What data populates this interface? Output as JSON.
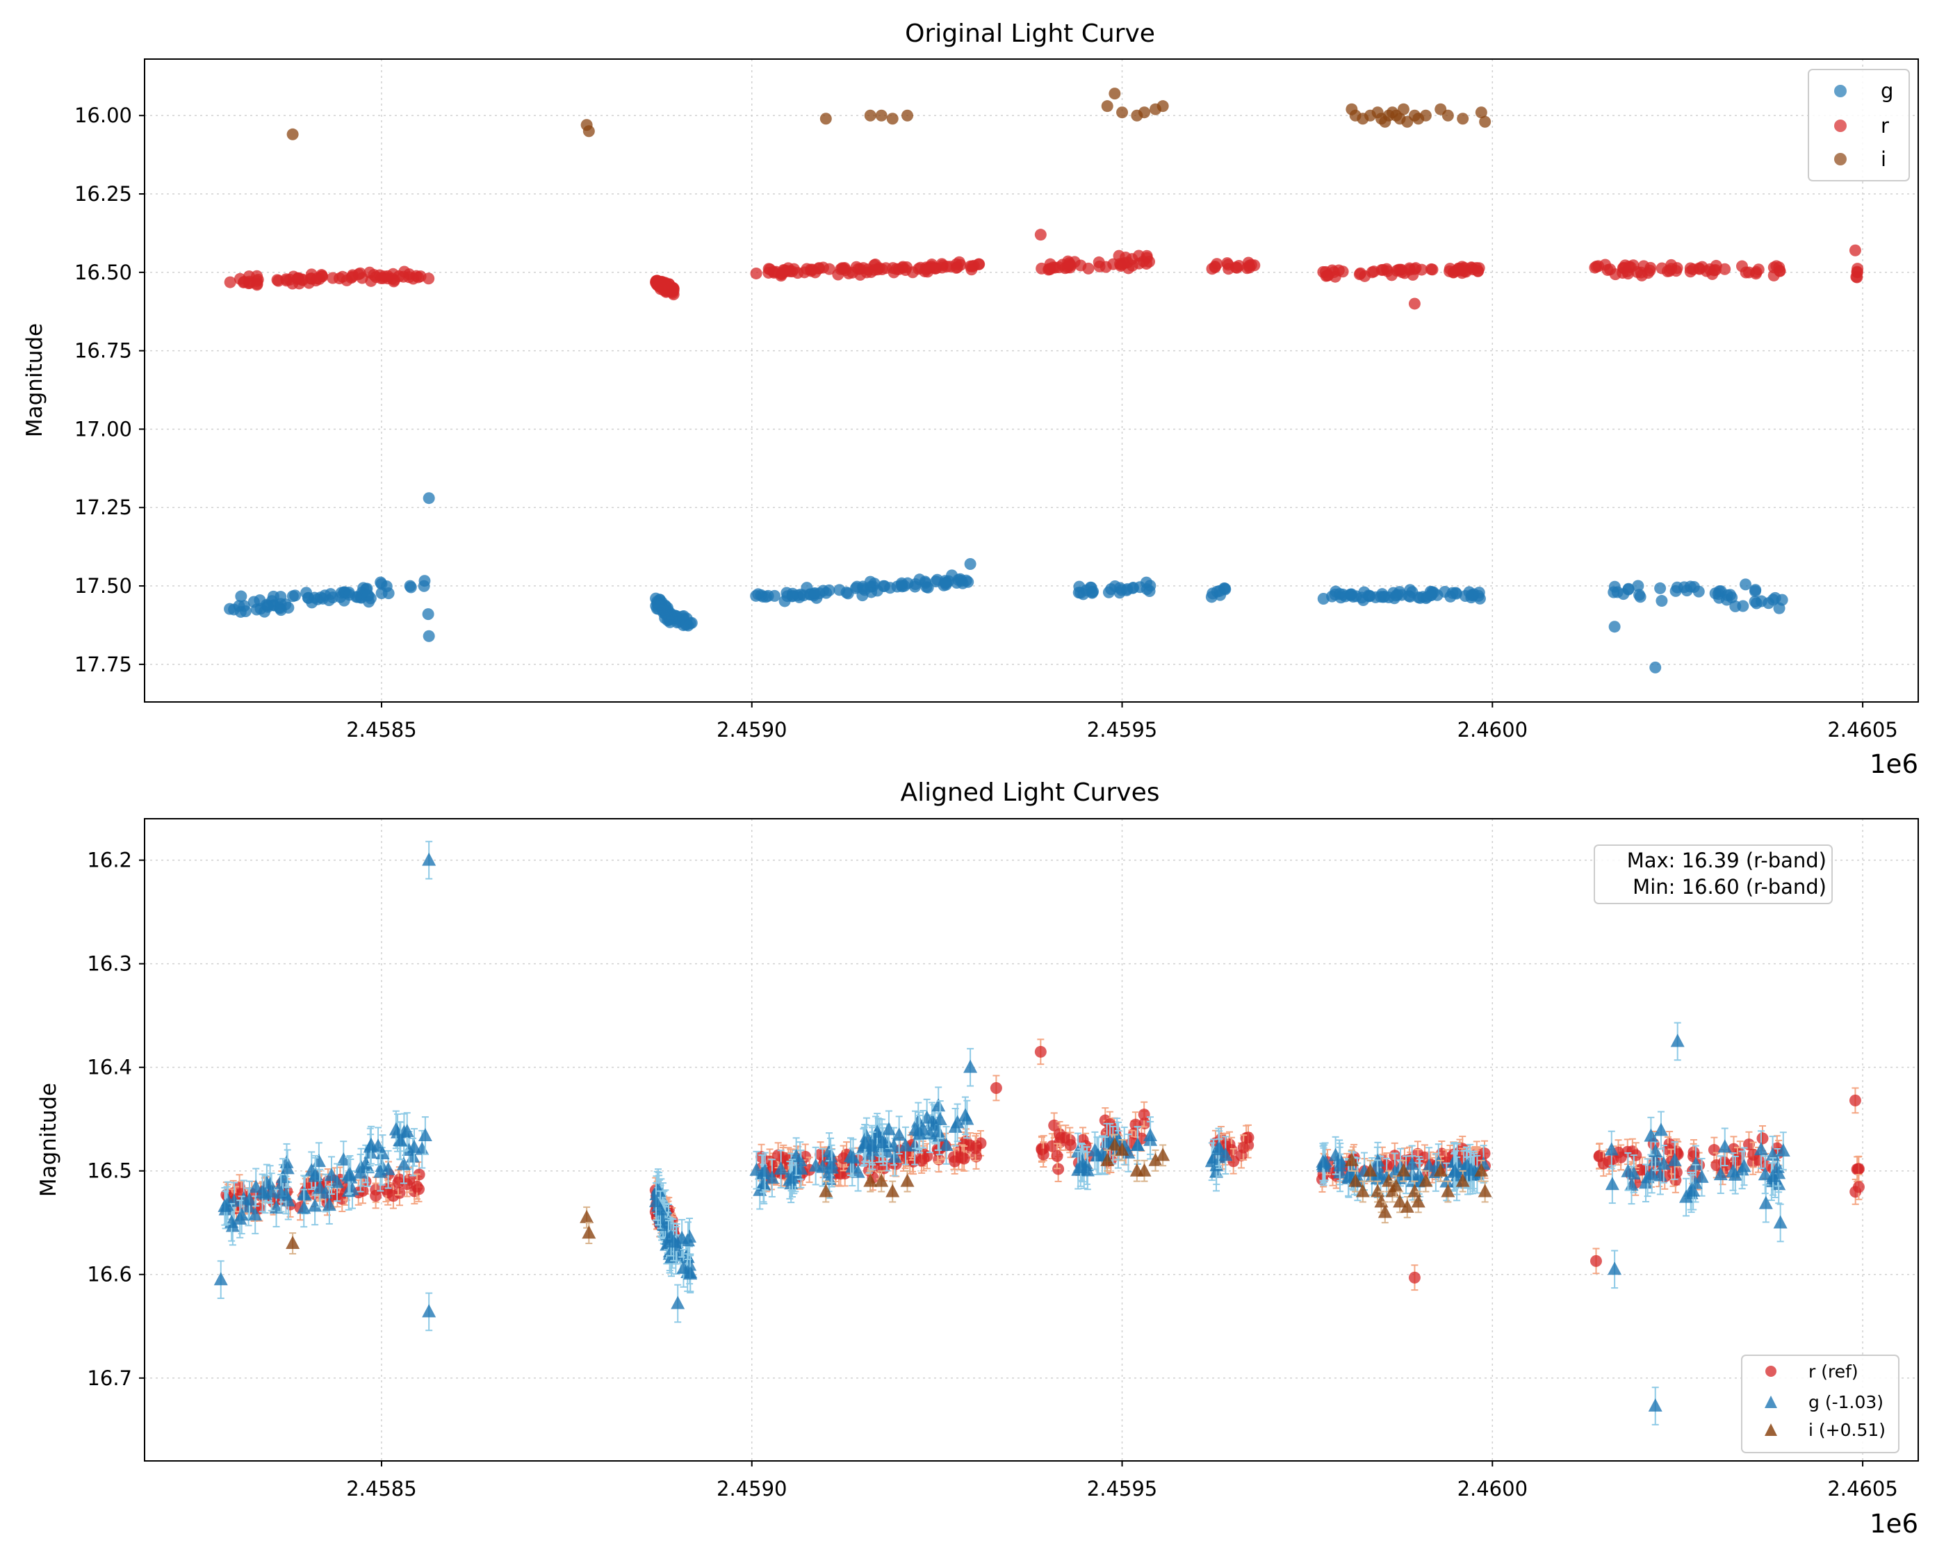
{
  "chart_data": [
    {
      "type": "scatter",
      "title": "Original Light Curve",
      "xlabel": "",
      "ylabel": "Magnitude",
      "x_offset_label": "1e6",
      "xlim": [
        2458180,
        2460575
      ],
      "ylim": [
        17.87,
        15.82
      ],
      "y_inverted": true,
      "grid": true,
      "x_ticks": [
        2458500,
        2459000,
        2459500,
        2460000,
        2460500
      ],
      "x_tick_labels": [
        "2.4585",
        "2.4590",
        "2.4595",
        "2.4600",
        "2.4605"
      ],
      "y_ticks": [
        16.0,
        16.25,
        16.5,
        16.75,
        17.0,
        17.25,
        17.5,
        17.75
      ],
      "y_tick_labels": [
        "16.00",
        "16.25",
        "16.50",
        "16.75",
        "17.00",
        "17.25",
        "17.50",
        "17.75"
      ],
      "legend": {
        "placement": "top-right",
        "entries": [
          {
            "label": "g",
            "color": "#1f77b4",
            "marker": "circle"
          },
          {
            "label": "r",
            "color": "#d62728",
            "marker": "circle"
          },
          {
            "label": "i",
            "color": "#8b4513",
            "marker": "circle"
          }
        ]
      },
      "series": [
        {
          "name": "g",
          "color": "#1f77b4",
          "marker": "circle",
          "segments": [
            {
              "x": [
                2458283,
                2458565
              ],
              "y": [
                17.57,
                17.5
              ],
              "spread": 0.04,
              "n": 70
            },
            {
              "x": [
                2458870,
                2458890
              ],
              "y": [
                17.55,
                17.6
              ],
              "spread": 0.03,
              "n": 40
            },
            {
              "x": [
                2458890,
                2458920
              ],
              "y": [
                17.6,
                17.62
              ],
              "spread": 0.03,
              "n": 20
            },
            {
              "x": [
                2459005,
                2459295
              ],
              "y": [
                17.54,
                17.48
              ],
              "spread": 0.025,
              "n": 75
            },
            {
              "x": [
                2459440,
                2459540
              ],
              "y": [
                17.52,
                17.5
              ],
              "spread": 0.025,
              "n": 25
            },
            {
              "x": [
                2459620,
                2459640
              ],
              "y": [
                17.53,
                17.51
              ],
              "spread": 0.02,
              "n": 8
            },
            {
              "x": [
                2459770,
                2459990
              ],
              "y": [
                17.53,
                17.53
              ],
              "spread": 0.02,
              "n": 60
            },
            {
              "x": [
                2460155,
                2460395
              ],
              "y": [
                17.52,
                17.54
              ],
              "spread": 0.05,
              "n": 40
            }
          ],
          "outliers": [
            [
              2458564,
              17.22
            ],
            [
              2458564,
              17.66
            ],
            [
              2458563,
              17.59
            ],
            [
              2459295,
              17.43
            ],
            [
              2460220,
              17.76
            ],
            [
              2460165,
              17.63
            ]
          ]
        },
        {
          "name": "r",
          "color": "#d62728",
          "marker": "circle",
          "segments": [
            {
              "x": [
                2458283,
                2458565
              ],
              "y": [
                16.53,
                16.51
              ],
              "spread": 0.02,
              "n": 70
            },
            {
              "x": [
                2458870,
                2458895
              ],
              "y": [
                16.53,
                16.56
              ],
              "spread": 0.02,
              "n": 75
            },
            {
              "x": [
                2459005,
                2459310
              ],
              "y": [
                16.5,
                16.48
              ],
              "spread": 0.02,
              "n": 90
            },
            {
              "x": [
                2459390,
                2459540
              ],
              "y": [
                16.48,
                16.46
              ],
              "spread": 0.03,
              "n": 40
            },
            {
              "x": [
                2459620,
                2459680
              ],
              "y": [
                16.48,
                16.48
              ],
              "spread": 0.02,
              "n": 16
            },
            {
              "x": [
                2459770,
                2459990
              ],
              "y": [
                16.5,
                16.49
              ],
              "spread": 0.02,
              "n": 55
            },
            {
              "x": [
                2460135,
                2460395
              ],
              "y": [
                16.49,
                16.49
              ],
              "spread": 0.03,
              "n": 55
            },
            {
              "x": [
                2460490,
                2460495
              ],
              "y": [
                16.5,
                16.5
              ],
              "spread": 0.03,
              "n": 5
            }
          ],
          "outliers": [
            [
              2459390,
              16.38
            ],
            [
              2459895,
              16.6
            ],
            [
              2460490,
              16.43
            ]
          ]
        },
        {
          "name": "i",
          "color": "#8b4513",
          "marker": "circle",
          "points": [
            [
              2458380,
              16.06
            ],
            [
              2458777,
              16.03
            ],
            [
              2458780,
              16.05
            ],
            [
              2459100,
              16.01
            ],
            [
              2459175,
              16.0
            ],
            [
              2459190,
              16.01
            ],
            [
              2459210,
              16.0
            ],
            [
              2459160,
              16.0
            ],
            [
              2459490,
              15.93
            ],
            [
              2459480,
              15.97
            ],
            [
              2459500,
              15.99
            ],
            [
              2459520,
              16.0
            ],
            [
              2459530,
              15.99
            ],
            [
              2459545,
              15.98
            ],
            [
              2459555,
              15.97
            ],
            [
              2459810,
              15.98
            ],
            [
              2459815,
              16.0
            ],
            [
              2459825,
              16.01
            ],
            [
              2459835,
              16.0
            ],
            [
              2459845,
              15.99
            ],
            [
              2459850,
              16.01
            ],
            [
              2459855,
              16.02
            ],
            [
              2459860,
              16.0
            ],
            [
              2459865,
              15.99
            ],
            [
              2459870,
              16.0
            ],
            [
              2459875,
              16.01
            ],
            [
              2459880,
              15.98
            ],
            [
              2459885,
              16.02
            ],
            [
              2459895,
              16.0
            ],
            [
              2459900,
              16.01
            ],
            [
              2459910,
              16.0
            ],
            [
              2459930,
              15.98
            ],
            [
              2459940,
              16.0
            ],
            [
              2459960,
              16.01
            ],
            [
              2459985,
              15.99
            ],
            [
              2459990,
              16.02
            ]
          ]
        }
      ]
    },
    {
      "type": "scatter",
      "title": "Aligned Light Curves",
      "xlabel": "",
      "ylabel": "Magnitude",
      "x_offset_label": "1e6",
      "xlim": [
        2458180,
        2460575
      ],
      "ylim": [
        16.78,
        16.16
      ],
      "y_inverted": true,
      "grid": true,
      "error_bars": true,
      "x_ticks": [
        2458500,
        2459000,
        2459500,
        2460000,
        2460500
      ],
      "x_tick_labels": [
        "2.4585",
        "2.4590",
        "2.4595",
        "2.4600",
        "2.4605"
      ],
      "y_ticks": [
        16.2,
        16.3,
        16.4,
        16.5,
        16.6,
        16.7
      ],
      "y_tick_labels": [
        "16.2",
        "16.3",
        "16.4",
        "16.5",
        "16.6",
        "16.7"
      ],
      "annotation": {
        "placement": "top-right",
        "lines": [
          "Max: 16.39 (r-band)",
          "Min: 16.60 (r-band)"
        ]
      },
      "legend": {
        "placement": "bottom-right",
        "entries": [
          {
            "label": "r (ref)",
            "color": "#d62728",
            "marker": "circle"
          },
          {
            "label": "g (-1.03)",
            "color": "#1f77b4",
            "marker": "triangle"
          },
          {
            "label": "i (+0.51)",
            "color": "#8b4513",
            "marker": "triangle"
          }
        ]
      },
      "series": [
        {
          "name": "r (ref)",
          "color": "#d62728",
          "marker": "circle",
          "err": 0.012,
          "err_color": "#f4a582",
          "segments": [
            {
              "x": [
                2458283,
                2458565
              ],
              "y": [
                16.53,
                16.51
              ],
              "spread": 0.02,
              "n": 70
            },
            {
              "x": [
                2458870,
                2458895
              ],
              "y": [
                16.53,
                16.56
              ],
              "spread": 0.02,
              "n": 75
            },
            {
              "x": [
                2459005,
                2459310
              ],
              "y": [
                16.5,
                16.48
              ],
              "spread": 0.02,
              "n": 90
            },
            {
              "x": [
                2459390,
                2459540
              ],
              "y": [
                16.48,
                16.46
              ],
              "spread": 0.03,
              "n": 40
            },
            {
              "x": [
                2459620,
                2459680
              ],
              "y": [
                16.48,
                16.48
              ],
              "spread": 0.02,
              "n": 16
            },
            {
              "x": [
                2459770,
                2459990
              ],
              "y": [
                16.5,
                16.49
              ],
              "spread": 0.02,
              "n": 55
            },
            {
              "x": [
                2460135,
                2460395
              ],
              "y": [
                16.49,
                16.49
              ],
              "spread": 0.03,
              "n": 55
            },
            {
              "x": [
                2460490,
                2460495
              ],
              "y": [
                16.51,
                16.51
              ],
              "spread": 0.03,
              "n": 5
            }
          ],
          "outliers": [
            [
              2459390,
              16.385
            ],
            [
              2459895,
              16.603
            ],
            [
              2460490,
              16.432
            ],
            [
              2459330,
              16.42
            ],
            [
              2460140,
              16.587
            ]
          ]
        },
        {
          "name": "g (-1.03)",
          "color": "#1f77b4",
          "marker": "triangle",
          "err": 0.018,
          "err_color": "#8ecae6",
          "segments": [
            {
              "x": [
                2458283,
                2458565
              ],
              "y": [
                16.54,
                16.47
              ],
              "spread": 0.04,
              "n": 70
            },
            {
              "x": [
                2458870,
                2458890
              ],
              "y": [
                16.52,
                16.57
              ],
              "spread": 0.03,
              "n": 40
            },
            {
              "x": [
                2458890,
                2458920
              ],
              "y": [
                16.57,
                16.59
              ],
              "spread": 0.03,
              "n": 20
            },
            {
              "x": [
                2459005,
                2459295
              ],
              "y": [
                16.51,
                16.45
              ],
              "spread": 0.025,
              "n": 75
            },
            {
              "x": [
                2459440,
                2459540
              ],
              "y": [
                16.49,
                16.47
              ],
              "spread": 0.025,
              "n": 25
            },
            {
              "x": [
                2459620,
                2459640
              ],
              "y": [
                16.5,
                16.48
              ],
              "spread": 0.02,
              "n": 8
            },
            {
              "x": [
                2459770,
                2459990
              ],
              "y": [
                16.5,
                16.5
              ],
              "spread": 0.02,
              "n": 60
            },
            {
              "x": [
                2460155,
                2460395
              ],
              "y": [
                16.49,
                16.51
              ],
              "spread": 0.05,
              "n": 40
            }
          ],
          "outliers": [
            [
              2458564,
              16.2
            ],
            [
              2458564,
              16.636
            ],
            [
              2458283,
              16.605
            ],
            [
              2459295,
              16.4
            ],
            [
              2460220,
              16.727
            ],
            [
              2460250,
              16.375
            ],
            [
              2460165,
              16.595
            ],
            [
              2458900,
              16.628
            ]
          ]
        },
        {
          "name": "i (+0.51)",
          "color": "#8b4513",
          "marker": "triangle",
          "err": 0.01,
          "err_color": "#d9b38c",
          "points": [
            [
              2458380,
              16.57
            ],
            [
              2458777,
              16.545
            ],
            [
              2458780,
              16.56
            ],
            [
              2459100,
              16.52
            ],
            [
              2459175,
              16.51
            ],
            [
              2459190,
              16.52
            ],
            [
              2459210,
              16.51
            ],
            [
              2459160,
              16.51
            ],
            [
              2459490,
              16.475
            ],
            [
              2459480,
              16.49
            ],
            [
              2459500,
              16.48
            ],
            [
              2459520,
              16.5
            ],
            [
              2459530,
              16.5
            ],
            [
              2459545,
              16.49
            ],
            [
              2459555,
              16.485
            ],
            [
              2459810,
              16.49
            ],
            [
              2459815,
              16.51
            ],
            [
              2459825,
              16.52
            ],
            [
              2459835,
              16.5
            ],
            [
              2459845,
              16.52
            ],
            [
              2459850,
              16.53
            ],
            [
              2459855,
              16.54
            ],
            [
              2459860,
              16.51
            ],
            [
              2459865,
              16.52
            ],
            [
              2459870,
              16.515
            ],
            [
              2459875,
              16.53
            ],
            [
              2459880,
              16.5
            ],
            [
              2459885,
              16.535
            ],
            [
              2459895,
              16.52
            ],
            [
              2459900,
              16.53
            ],
            [
              2459910,
              16.51
            ],
            [
              2459930,
              16.5
            ],
            [
              2459940,
              16.52
            ],
            [
              2459960,
              16.51
            ],
            [
              2459985,
              16.5
            ],
            [
              2459990,
              16.52
            ]
          ]
        }
      ]
    }
  ]
}
